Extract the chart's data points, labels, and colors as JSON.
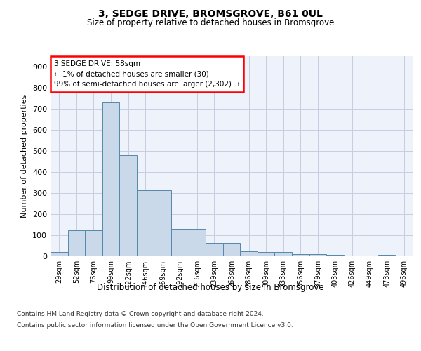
{
  "title": "3, SEDGE DRIVE, BROMSGROVE, B61 0UL",
  "subtitle": "Size of property relative to detached houses in Bromsgrove",
  "xlabel": "Distribution of detached houses by size in Bromsgrove",
  "ylabel": "Number of detached properties",
  "bar_color": "#c9d9ea",
  "bar_edge_color": "#5588aa",
  "background_color": "#eef2fa",
  "grid_color": "#c8cce0",
  "categories": [
    "29sqm",
    "52sqm",
    "76sqm",
    "99sqm",
    "122sqm",
    "146sqm",
    "169sqm",
    "192sqm",
    "216sqm",
    "239sqm",
    "263sqm",
    "286sqm",
    "309sqm",
    "333sqm",
    "356sqm",
    "379sqm",
    "403sqm",
    "426sqm",
    "449sqm",
    "473sqm",
    "496sqm"
  ],
  "values": [
    20,
    122,
    122,
    730,
    480,
    315,
    315,
    130,
    130,
    65,
    65,
    25,
    20,
    20,
    10,
    10,
    8,
    0,
    0,
    8,
    0
  ],
  "ylim": [
    0,
    950
  ],
  "yticks": [
    0,
    100,
    200,
    300,
    400,
    500,
    600,
    700,
    800,
    900
  ],
  "annotation_text": "3 SEDGE DRIVE: 58sqm\n← 1% of detached houses are smaller (30)\n99% of semi-detached houses are larger (2,302) →",
  "footer_line1": "Contains HM Land Registry data © Crown copyright and database right 2024.",
  "footer_line2": "Contains public sector information licensed under the Open Government Licence v3.0."
}
